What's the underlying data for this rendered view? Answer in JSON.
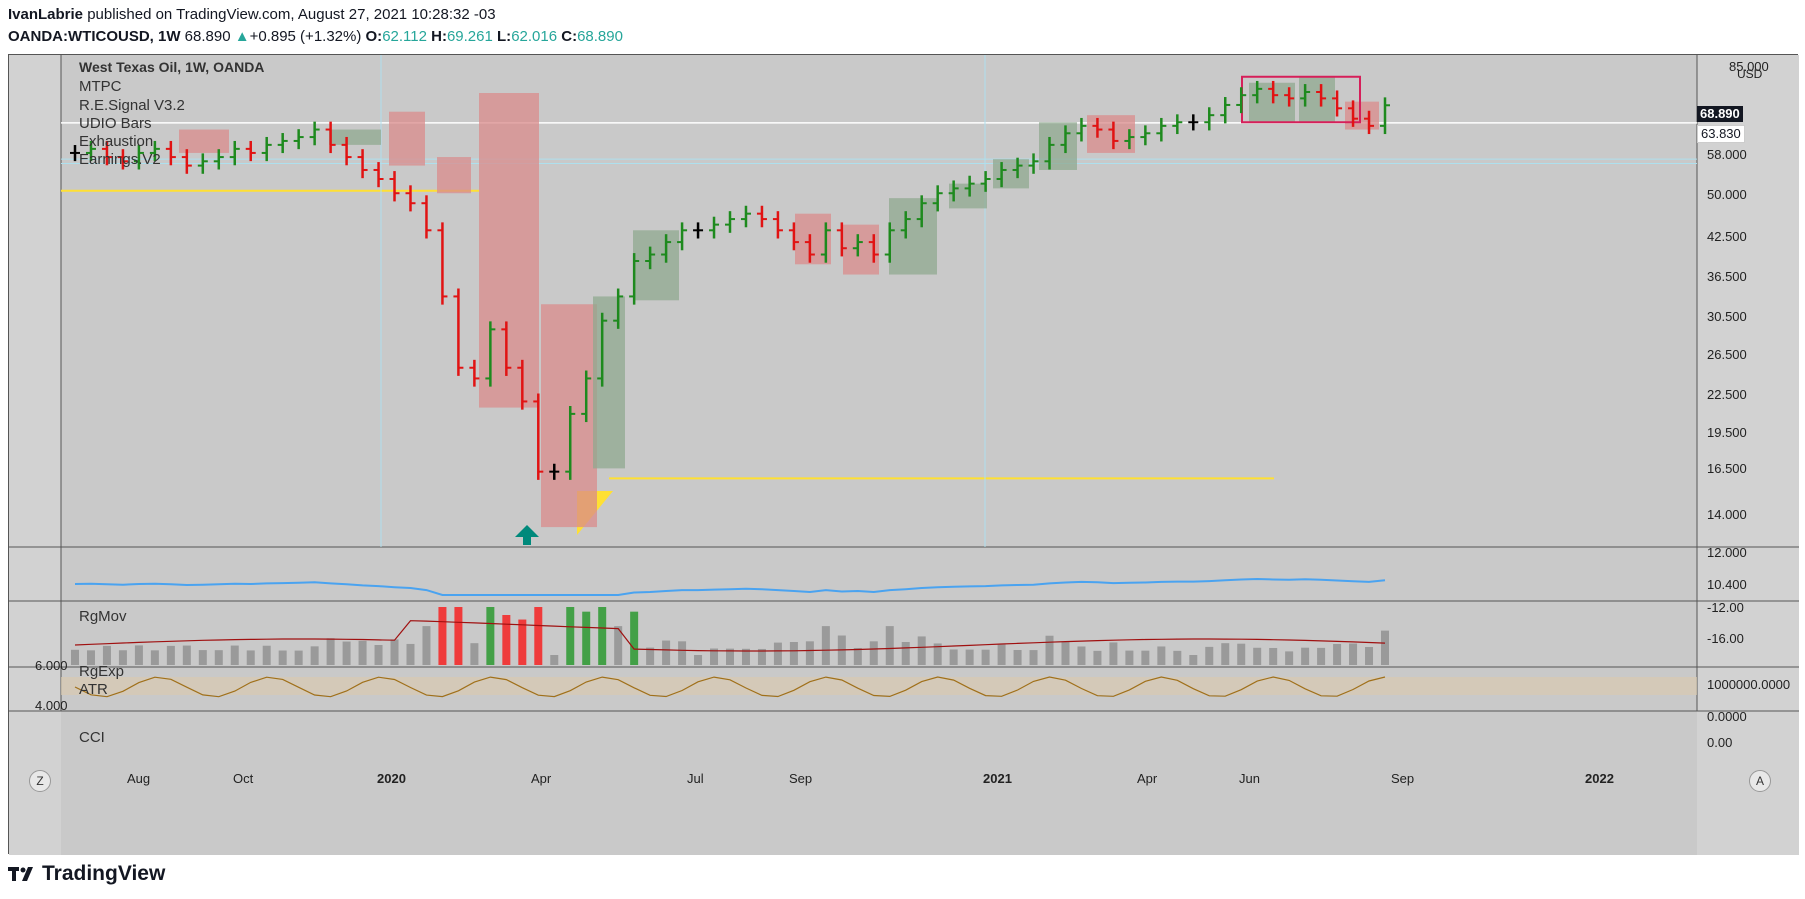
{
  "header": {
    "author": "IvanLabrie",
    "published_text": "published on TradingView.com, August 27, 2021 10:28:32 -03",
    "symbol": "OANDA:WTICOUSD, 1W",
    "last": "68.890",
    "change": "+0.895 (+1.32%)",
    "o_label": "O:",
    "o_val": "62.112",
    "h_label": "H:",
    "h_val": "69.261",
    "l_label": "L:",
    "l_val": "62.016",
    "c_label": "C:",
    "c_val": "68.890"
  },
  "legend": {
    "title": "West Texas Oil, 1W, OANDA",
    "items": [
      "MTPC",
      "R.E.Signal V3.2",
      "UDIO Bars",
      "Exhaustion",
      "Earnings.V2"
    ]
  },
  "price_axis": {
    "currency": "USD",
    "ticks": [
      "85.000",
      "58.000",
      "50.000",
      "42.500",
      "36.500",
      "30.500",
      "26.500",
      "22.500",
      "19.500",
      "16.500",
      "14.000",
      "12.000",
      "10.400"
    ],
    "current_price_tag": "68.890",
    "line_price_tag": "63.830"
  },
  "time_axis": {
    "ticks": [
      "Aug",
      "Oct",
      "2020",
      "Apr",
      "Jul",
      "Sep",
      "2021",
      "Apr",
      "Jun",
      "Sep",
      "2022"
    ],
    "left_button": "Z",
    "right_button": "A"
  },
  "panes": {
    "rgmov": {
      "label": "RgMov",
      "ticks": [
        "-12.00",
        "-16.00"
      ]
    },
    "rgexp": {
      "label_1": "RgExp",
      "label_2": "ATR",
      "left_ticks": [
        "6.000",
        "4.000"
      ],
      "right_ticks": [
        "1000000.0000",
        "0.0000"
      ]
    },
    "cci": {
      "label": "CCI",
      "ticks": [
        "0.00"
      ]
    }
  },
  "colors": {
    "background": "#c9c9c9",
    "bull_bar": "#1e8a1e",
    "bear_bar": "#e11313",
    "neutral_bar": "#000000",
    "bear_box": "#d98b8b",
    "bull_box": "#8fa88f",
    "yellow_line": "#ffe033",
    "rgmov_line": "#4aa3f0",
    "atr_line": "#a01010",
    "cci_line": "#a0701a",
    "tag_dark": "#131722",
    "accent_arrow": "#00897b"
  },
  "footer": {
    "brand": "TradingView"
  }
}
